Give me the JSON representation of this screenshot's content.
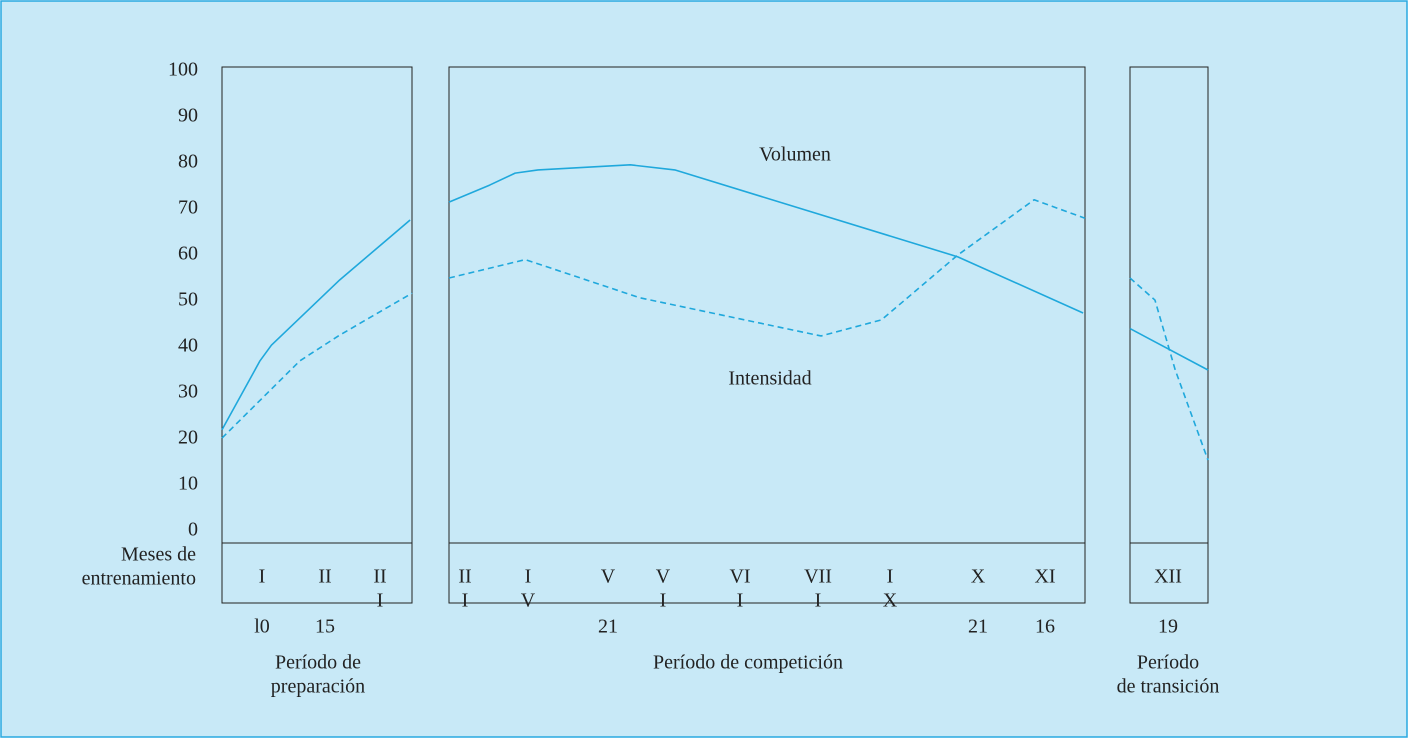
{
  "row_label": [
    "Meses de",
    "entrenamiento"
  ],
  "chart_data": [
    {
      "type": "line",
      "ylim": [
        0,
        100
      ],
      "yticks": [
        0,
        10,
        20,
        30,
        40,
        50,
        60,
        70,
        80,
        90,
        100
      ],
      "xlim": [
        0,
        100
      ],
      "months": [
        [
          "I"
        ],
        [
          "II"
        ],
        [
          "II",
          "I"
        ]
      ],
      "days": [
        "l0",
        "15",
        null
      ],
      "period": [
        "Período de",
        "preparación"
      ],
      "series": [
        {
          "name": "Volumen",
          "color": "#1fa8dc",
          "dashed": false,
          "x": [
            0,
            20,
            26,
            62,
            99
          ],
          "values": [
            22,
            37,
            40.4,
            54.6,
            67.6
          ]
        },
        {
          "name": "Intensidad",
          "color": "#1fa8dc",
          "dashed": true,
          "x": [
            0,
            41,
            62,
            100
          ],
          "values": [
            20.2,
            37,
            42.6,
            51.7
          ]
        }
      ]
    },
    {
      "type": "line",
      "ylim": [
        0,
        100
      ],
      "xlim": [
        0,
        100
      ],
      "months": [
        [
          "II",
          "I"
        ],
        [
          "I",
          "V"
        ],
        [
          "V"
        ],
        [
          "V",
          "I"
        ],
        [
          "VI",
          "I"
        ],
        [
          "VII",
          "I"
        ],
        [
          "I",
          "X"
        ],
        [
          "X"
        ],
        [
          "XI"
        ]
      ],
      "days": [
        null,
        null,
        "21",
        null,
        null,
        null,
        null,
        "21",
        "16"
      ],
      "period": [
        "Período de competición"
      ],
      "series": [
        {
          "name": "Volumen",
          "color": "#1fa8dc",
          "dashed": false,
          "x": [
            0,
            6.4,
            10.4,
            14,
            28.5,
            35.5,
            80,
            99.7
          ],
          "values": [
            71.5,
            75.2,
            77.8,
            78.5,
            79.6,
            78.5,
            59.6,
            47.4
          ]
        },
        {
          "name": "Intensidad",
          "color": "#1fa8dc",
          "dashed": true,
          "x": [
            0,
            12,
            30,
            58.5,
            68,
            80,
            92,
            100
          ],
          "values": [
            55,
            59,
            50.7,
            42.4,
            45.9,
            60,
            72,
            68
          ]
        }
      ]
    },
    {
      "type": "line",
      "ylim": [
        0,
        100
      ],
      "xlim": [
        0,
        100
      ],
      "months": [
        [
          "XII"
        ]
      ],
      "days": [
        "19"
      ],
      "period": [
        "Período",
        "de transición"
      ],
      "series": [
        {
          "name": "Volumen",
          "color": "#1fa8dc",
          "dashed": false,
          "x": [
            0,
            100
          ],
          "values": [
            44,
            35
          ]
        },
        {
          "name": "Intensidad",
          "color": "#1fa8dc",
          "dashed": true,
          "x": [
            0,
            32,
            58,
            100
          ],
          "values": [
            55,
            50.2,
            35,
            15.4
          ]
        }
      ]
    }
  ]
}
